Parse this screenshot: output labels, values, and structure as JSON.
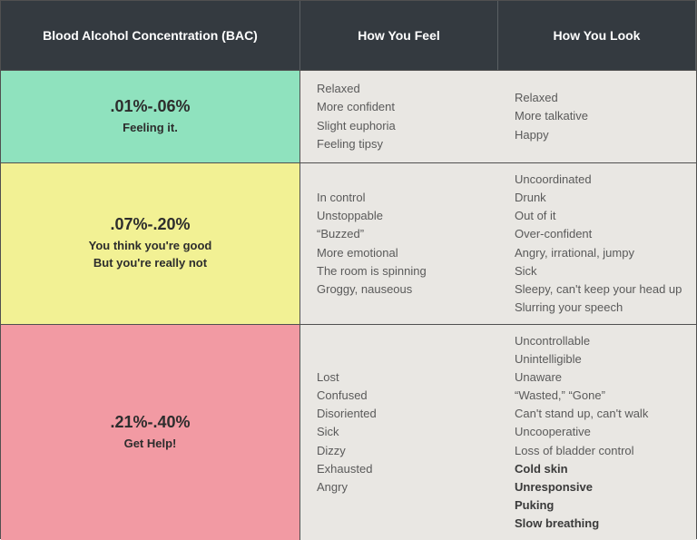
{
  "table": {
    "headers": [
      "Blood Alcohol Concentration (BAC)",
      "How You Feel",
      "How You Look"
    ],
    "header_bg": "#343a40",
    "header_fg": "#ffffff",
    "cell_bg": "#e9e7e3",
    "cell_fg": "#5a5a5a",
    "border_color": "#505050",
    "rows": [
      {
        "range": ".01%-.06%",
        "subtitle": "Feeling it.",
        "bg": "#8fe2be",
        "feel": [
          {
            "text": "Relaxed",
            "bold": false
          },
          {
            "text": "More confident",
            "bold": false
          },
          {
            "text": "Slight euphoria",
            "bold": false
          },
          {
            "text": "Feeling tipsy",
            "bold": false
          }
        ],
        "look": [
          {
            "text": "Relaxed",
            "bold": false
          },
          {
            "text": "More talkative",
            "bold": false
          },
          {
            "text": "Happy",
            "bold": false
          }
        ]
      },
      {
        "range": ".07%-.20%",
        "subtitle": "You think you're good\nBut you're really not",
        "bg": "#f2f194",
        "feel": [
          {
            "text": "In control",
            "bold": false
          },
          {
            "text": "Unstoppable",
            "bold": false
          },
          {
            "text": "“Buzzed”",
            "bold": false
          },
          {
            "text": "More emotional",
            "bold": false
          },
          {
            "text": "The room is spinning",
            "bold": false
          },
          {
            "text": "Groggy, nauseous",
            "bold": false
          }
        ],
        "look": [
          {
            "text": "Uncoordinated",
            "bold": false
          },
          {
            "text": "Drunk",
            "bold": false
          },
          {
            "text": "Out of it",
            "bold": false
          },
          {
            "text": "Over-confident",
            "bold": false
          },
          {
            "text": "Angry, irrational, jumpy",
            "bold": false
          },
          {
            "text": "Sick",
            "bold": false
          },
          {
            "text": "Sleepy, can't keep your head up",
            "bold": false
          },
          {
            "text": "Slurring your speech",
            "bold": false
          }
        ]
      },
      {
        "range": ".21%-.40%",
        "subtitle": "Get Help!",
        "bg": "#f29aa3",
        "feel": [
          {
            "text": "Lost",
            "bold": false
          },
          {
            "text": "Confused",
            "bold": false
          },
          {
            "text": "Disoriented",
            "bold": false
          },
          {
            "text": "Sick",
            "bold": false
          },
          {
            "text": "Dizzy",
            "bold": false
          },
          {
            "text": "Exhausted",
            "bold": false
          },
          {
            "text": "Angry",
            "bold": false
          }
        ],
        "look": [
          {
            "text": "Uncontrollable",
            "bold": false
          },
          {
            "text": "Unintelligible",
            "bold": false
          },
          {
            "text": "Unaware",
            "bold": false
          },
          {
            "text": "“Wasted,” “Gone”",
            "bold": false
          },
          {
            "text": "Can't stand up, can't walk",
            "bold": false
          },
          {
            "text": "Uncooperative",
            "bold": false
          },
          {
            "text": "Loss of bladder control",
            "bold": false
          },
          {
            "text": "Cold skin",
            "bold": true
          },
          {
            "text": "Unresponsive",
            "bold": true
          },
          {
            "text": "Puking",
            "bold": true
          },
          {
            "text": "Slow breathing",
            "bold": true
          }
        ]
      }
    ]
  }
}
